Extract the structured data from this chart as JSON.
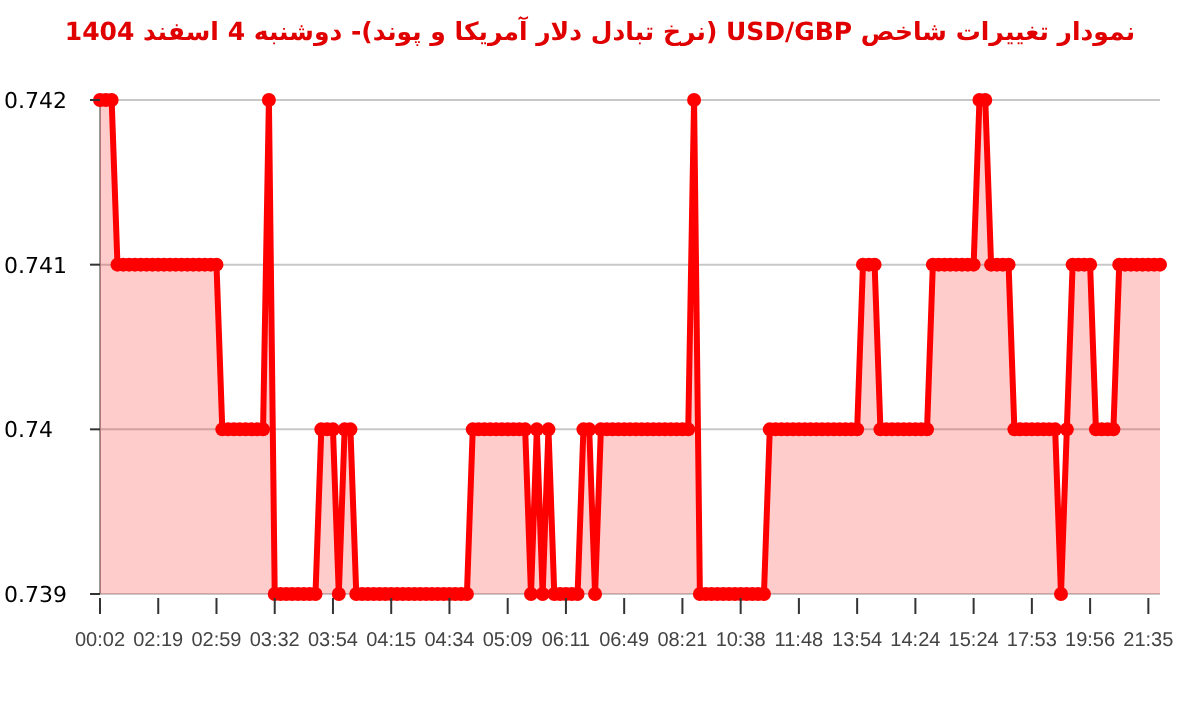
{
  "chart_data": {
    "type": "area",
    "title": "نمودار تغییرات شاخص USD/GBP (نرخ تبادل دلار آمریکا و پوند)- دوشنبه  4 اسفند 1404",
    "categories": [
      "00:02",
      null,
      null,
      null,
      null,
      null,
      null,
      null,
      null,
      null,
      "02:19",
      null,
      null,
      null,
      null,
      null,
      null,
      null,
      null,
      null,
      "02:59",
      null,
      null,
      null,
      null,
      null,
      null,
      null,
      null,
      null,
      "03:32",
      null,
      null,
      null,
      null,
      null,
      null,
      null,
      null,
      null,
      "03:54",
      null,
      null,
      null,
      null,
      null,
      null,
      null,
      null,
      null,
      "04:15",
      null,
      null,
      null,
      null,
      null,
      null,
      null,
      null,
      null,
      "04:34",
      null,
      null,
      null,
      null,
      null,
      null,
      null,
      null,
      null,
      "05:09",
      null,
      null,
      null,
      null,
      null,
      null,
      null,
      null,
      null,
      "06:11",
      null,
      null,
      null,
      null,
      null,
      null,
      null,
      null,
      null,
      "06:49",
      null,
      null,
      null,
      null,
      null,
      null,
      null,
      null,
      null,
      "08:21",
      null,
      null,
      null,
      null,
      null,
      null,
      null,
      null,
      null,
      "10:38",
      null,
      null,
      null,
      null,
      null,
      null,
      null,
      null,
      null,
      "11:48",
      null,
      null,
      null,
      null,
      null,
      null,
      null,
      null,
      null,
      "13:54",
      null,
      null,
      null,
      null,
      null,
      null,
      null,
      null,
      null,
      "14:24",
      null,
      null,
      null,
      null,
      null,
      null,
      null,
      null,
      null,
      "15:24",
      null,
      null,
      null,
      null,
      null,
      null,
      null,
      null,
      null,
      "17:53",
      null,
      null,
      null,
      null,
      null,
      null,
      null,
      null,
      null,
      "19:56",
      null,
      null,
      null,
      null,
      null,
      null,
      null,
      null,
      null,
      "21:35",
      null,
      null
    ],
    "series": [
      {
        "color": "#ff0000",
        "values": [
          0.742,
          0.742,
          0.742,
          0.741,
          0.741,
          0.741,
          0.741,
          0.741,
          0.741,
          0.741,
          0.741,
          0.741,
          0.741,
          0.741,
          0.741,
          0.741,
          0.741,
          0.741,
          0.741,
          0.741,
          0.741,
          0.74,
          0.74,
          0.74,
          0.74,
          0.74,
          0.74,
          0.74,
          0.74,
          0.742,
          0.739,
          0.739,
          0.739,
          0.739,
          0.739,
          0.739,
          0.739,
          0.739,
          0.74,
          0.74,
          0.74,
          0.739,
          0.74,
          0.74,
          0.739,
          0.739,
          0.739,
          0.739,
          0.739,
          0.739,
          0.739,
          0.739,
          0.739,
          0.739,
          0.739,
          0.739,
          0.739,
          0.739,
          0.739,
          0.739,
          0.739,
          0.739,
          0.739,
          0.739,
          0.74,
          0.74,
          0.74,
          0.74,
          0.74,
          0.74,
          0.74,
          0.74,
          0.74,
          0.74,
          0.739,
          0.74,
          0.739,
          0.74,
          0.739,
          0.739,
          0.739,
          0.739,
          0.739,
          0.74,
          0.74,
          0.739,
          0.74,
          0.74,
          0.74,
          0.74,
          0.74,
          0.74,
          0.74,
          0.74,
          0.74,
          0.74,
          0.74,
          0.74,
          0.74,
          0.74,
          0.74,
          0.74,
          0.742,
          0.739,
          0.739,
          0.739,
          0.739,
          0.739,
          0.739,
          0.739,
          0.739,
          0.739,
          0.739,
          0.739,
          0.739,
          0.74,
          0.74,
          0.74,
          0.74,
          0.74,
          0.74,
          0.74,
          0.74,
          0.74,
          0.74,
          0.74,
          0.74,
          0.74,
          0.74,
          0.74,
          0.74,
          0.741,
          0.741,
          0.741,
          0.74,
          0.74,
          0.74,
          0.74,
          0.74,
          0.74,
          0.74,
          0.74,
          0.74,
          0.741,
          0.741,
          0.741,
          0.741,
          0.741,
          0.741,
          0.741,
          0.741,
          0.742,
          0.742,
          0.741,
          0.741,
          0.741,
          0.741,
          0.74,
          0.74,
          0.74,
          0.74,
          0.74,
          0.74,
          0.74,
          0.74,
          0.739,
          0.74,
          0.741,
          0.741,
          0.741,
          0.741,
          0.74,
          0.74,
          0.74,
          0.74,
          0.741,
          0.741,
          0.741,
          0.741,
          0.741,
          0.741,
          0.741,
          0.741
        ]
      }
    ],
    "ylim": [
      0.739,
      0.742
    ],
    "yticks": [
      0.739,
      0.74,
      0.741,
      0.742
    ],
    "grid": "y",
    "marker": "circle"
  }
}
